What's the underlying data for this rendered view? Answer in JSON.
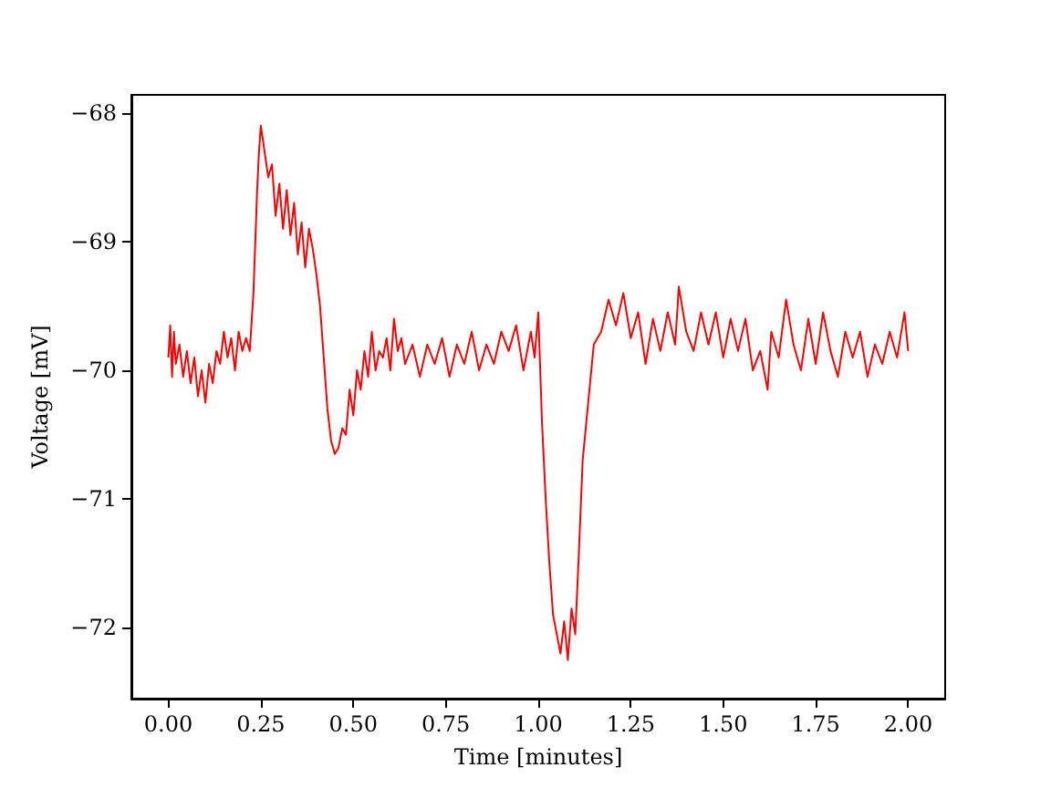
{
  "chart_data": {
    "type": "line",
    "xlabel": "Time [minutes]",
    "ylabel": "Voltage [mV]",
    "xlim": [
      -0.1,
      2.1
    ],
    "xticks": [
      {
        "value": 0,
        "label": "0.00"
      },
      {
        "value": 0.25,
        "label": "0.25"
      },
      {
        "value": 0.5,
        "label": "0.50"
      },
      {
        "value": 0.75,
        "label": "0.75"
      },
      {
        "value": 1,
        "label": "1.00"
      },
      {
        "value": 1.25,
        "label": "1.25"
      },
      {
        "value": 1.5,
        "label": "1.50"
      },
      {
        "value": 1.75,
        "label": "1.75"
      },
      {
        "value": 2,
        "label": "2.00"
      }
    ],
    "ylim": [
      -72.55,
      -67.86
    ],
    "yticks": [
      {
        "value": -72,
        "label": "−72"
      },
      {
        "value": -71,
        "label": "−71"
      },
      {
        "value": -70,
        "label": "−70"
      },
      {
        "value": -69,
        "label": "−69"
      },
      {
        "value": -68,
        "label": "−68"
      }
    ],
    "grid": false,
    "marker": "none",
    "line_style": "solid",
    "series": [
      {
        "color": "#ff0000",
        "x": [
          0,
          0.005,
          0.01,
          0.015,
          0.02,
          0.03,
          0.04,
          0.05,
          0.06,
          0.07,
          0.08,
          0.09,
          0.1,
          0.11,
          0.12,
          0.13,
          0.14,
          0.15,
          0.16,
          0.17,
          0.18,
          0.19,
          0.2,
          0.21,
          0.22,
          0.23,
          0.24,
          0.245,
          0.25,
          0.26,
          0.27,
          0.28,
          0.29,
          0.3,
          0.31,
          0.32,
          0.33,
          0.34,
          0.35,
          0.36,
          0.37,
          0.38,
          0.39,
          0.4,
          0.41,
          0.42,
          0.43,
          0.44,
          0.45,
          0.46,
          0.47,
          0.48,
          0.49,
          0.5,
          0.51,
          0.52,
          0.53,
          0.54,
          0.55,
          0.56,
          0.57,
          0.58,
          0.59,
          0.6,
          0.61,
          0.62,
          0.63,
          0.64,
          0.66,
          0.68,
          0.7,
          0.72,
          0.74,
          0.76,
          0.78,
          0.8,
          0.82,
          0.84,
          0.86,
          0.88,
          0.9,
          0.92,
          0.94,
          0.96,
          0.98,
          0.99,
          1.0,
          1.01,
          1.02,
          1.03,
          1.04,
          1.05,
          1.06,
          1.07,
          1.08,
          1.09,
          1.1,
          1.11,
          1.12,
          1.13,
          1.14,
          1.15,
          1.17,
          1.19,
          1.21,
          1.23,
          1.25,
          1.27,
          1.29,
          1.31,
          1.33,
          1.35,
          1.37,
          1.38,
          1.4,
          1.42,
          1.44,
          1.46,
          1.48,
          1.5,
          1.52,
          1.54,
          1.56,
          1.58,
          1.6,
          1.62,
          1.63,
          1.65,
          1.67,
          1.69,
          1.71,
          1.73,
          1.75,
          1.77,
          1.79,
          1.81,
          1.83,
          1.85,
          1.87,
          1.89,
          1.91,
          1.93,
          1.95,
          1.97,
          1.99,
          2.0
        ],
        "values": [
          -69.9,
          -69.65,
          -70.05,
          -69.7,
          -69.95,
          -69.8,
          -70.05,
          -69.85,
          -70.1,
          -69.9,
          -70.2,
          -70.0,
          -70.25,
          -69.95,
          -70.1,
          -69.85,
          -69.95,
          -69.7,
          -69.9,
          -69.75,
          -70.0,
          -69.7,
          -69.85,
          -69.75,
          -69.85,
          -69.4,
          -68.6,
          -68.3,
          -68.1,
          -68.3,
          -68.5,
          -68.4,
          -68.8,
          -68.55,
          -68.9,
          -68.6,
          -68.95,
          -68.7,
          -69.1,
          -68.85,
          -69.2,
          -68.9,
          -69.05,
          -69.25,
          -69.5,
          -69.9,
          -70.3,
          -70.55,
          -70.65,
          -70.6,
          -70.45,
          -70.5,
          -70.15,
          -70.35,
          -70.0,
          -70.15,
          -69.85,
          -70.05,
          -69.7,
          -70.0,
          -69.85,
          -69.9,
          -69.75,
          -70.0,
          -69.6,
          -69.85,
          -69.75,
          -69.95,
          -69.8,
          -70.05,
          -69.8,
          -69.95,
          -69.75,
          -70.05,
          -69.8,
          -69.95,
          -69.7,
          -70.0,
          -69.8,
          -69.95,
          -69.7,
          -69.85,
          -69.65,
          -70.0,
          -69.7,
          -69.9,
          -69.55,
          -70.4,
          -71.0,
          -71.5,
          -71.9,
          -72.05,
          -72.2,
          -71.95,
          -72.25,
          -71.85,
          -72.05,
          -71.4,
          -70.7,
          -70.4,
          -70.1,
          -69.8,
          -69.7,
          -69.45,
          -69.65,
          -69.4,
          -69.75,
          -69.55,
          -69.95,
          -69.6,
          -69.85,
          -69.55,
          -69.8,
          -69.35,
          -69.7,
          -69.85,
          -69.55,
          -69.8,
          -69.55,
          -69.9,
          -69.6,
          -69.85,
          -69.6,
          -70.0,
          -69.85,
          -70.15,
          -69.7,
          -69.9,
          -69.45,
          -69.8,
          -70.0,
          -69.6,
          -69.95,
          -69.55,
          -69.85,
          -70.05,
          -69.7,
          -69.9,
          -69.7,
          -70.05,
          -69.8,
          -69.95,
          -69.7,
          -69.9,
          -69.55,
          -69.85
        ]
      }
    ]
  }
}
